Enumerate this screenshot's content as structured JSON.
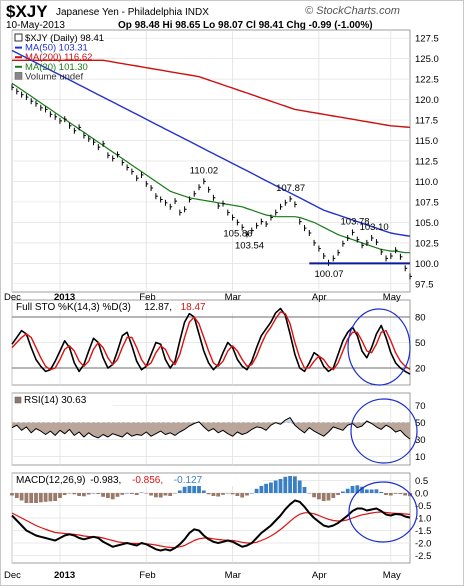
{
  "header": {
    "symbol": "$XJY",
    "name": "Japanese Yen - Philadelphia INDX",
    "date": "10-May-2013",
    "ohlc": "Op 98.48 Hi 98.65 Lo 98.07 Cl 98.41 Chg -0.99 (-1.00%)",
    "brand": "© StockCharts.com"
  },
  "colors": {
    "price": "#000000",
    "ma50": "#2233cc",
    "ma200": "#cc1111",
    "ma20": "#1a7a1a",
    "stok": "#000000",
    "stod": "#dd1111",
    "macd": "#000000",
    "signal": "#dd1111",
    "hist_pos": "#3a7fc4",
    "hist_neg": "#9a7a6a",
    "circle": "#1a2dd0",
    "support": "#0a1a9a"
  },
  "chart_data": [
    {
      "type": "line",
      "panel": "price",
      "legend": [
        {
          "key": "price",
          "text": "$XJY (Daily) 98.41"
        },
        {
          "key": "ma50",
          "text": "MA(50) 103.31"
        },
        {
          "key": "ma200",
          "text": "MA(200) 116.62"
        },
        {
          "key": "ma20",
          "text": "MA(20) 101.30"
        },
        {
          "key": "volume",
          "text": "Volume undef"
        }
      ],
      "x_labels": [
        "Dec",
        "2013",
        "Feb",
        "Mar",
        "Apr",
        "May"
      ],
      "y_ticks": [
        "127.5",
        "125.0",
        "122.5",
        "120.0",
        "117.5",
        "115.0",
        "112.5",
        "110.0",
        "107.5",
        "105.0",
        "102.5",
        "100.0",
        "97.5"
      ],
      "ylim": [
        96.5,
        128.5
      ],
      "annotations": [
        "110.02",
        "105.86",
        "103.54",
        "107.87",
        "103.78",
        "103.10",
        "100.07"
      ],
      "support_level": 100.0,
      "price": [
        121.5,
        121.0,
        120.6,
        120.3,
        119.8,
        119.5,
        119.0,
        118.8,
        118.2,
        117.9,
        117.4,
        117.6,
        116.8,
        116.2,
        116.6,
        115.6,
        115.2,
        114.8,
        114.2,
        114.6,
        113.2,
        112.8,
        113.3,
        112.3,
        111.7,
        111.2,
        110.4,
        110.8,
        109.7,
        109.2,
        108.2,
        107.8,
        107.4,
        106.9,
        107.6,
        106.2,
        106.6,
        107.8,
        108.5,
        109.3,
        110.02,
        109.0,
        108.0,
        107.0,
        107.3,
        106.2,
        105.6,
        105.0,
        104.4,
        103.54,
        104.0,
        104.6,
        105.1,
        104.8,
        105.6,
        106.2,
        106.9,
        107.4,
        107.87,
        107.2,
        105.1,
        104.3,
        103.7,
        102.5,
        101.8,
        100.9,
        100.07,
        100.6,
        101.3,
        102.4,
        103.1,
        103.78,
        102.9,
        102.2,
        102.5,
        103.1,
        102.6,
        101.4,
        100.6,
        100.9,
        101.6,
        100.8,
        99.4,
        98.41
      ],
      "ma20": [
        122.0,
        121.6,
        121.2,
        120.8,
        120.4,
        120.0,
        119.6,
        119.2,
        118.8,
        118.4,
        118.0,
        117.6,
        117.2,
        116.8,
        116.4,
        116.0,
        115.6,
        115.2,
        114.8,
        114.4,
        114.0,
        113.6,
        113.2,
        112.8,
        112.4,
        112.0,
        111.6,
        111.2,
        110.8,
        110.4,
        110.0,
        109.6,
        109.2,
        108.8,
        108.6,
        108.4,
        108.2,
        108.0,
        107.9,
        107.8,
        107.7,
        107.6,
        107.5,
        107.4,
        107.3,
        107.2,
        107.1,
        107.0,
        106.9,
        106.7,
        106.5,
        106.3,
        106.1,
        105.9,
        105.8,
        105.7,
        105.7,
        105.7,
        105.7,
        105.7,
        105.6,
        105.4,
        105.2,
        105.0,
        104.7,
        104.4,
        104.1,
        103.8,
        103.5,
        103.3,
        103.1,
        102.9,
        102.7,
        102.5,
        102.3,
        102.1,
        101.9,
        101.7,
        101.6,
        101.5,
        101.5,
        101.4,
        101.3,
        101.3
      ],
      "ma50": [
        126.0,
        125.7,
        125.4,
        125.1,
        124.8,
        124.5,
        124.2,
        123.9,
        123.6,
        123.3,
        123.0,
        122.7,
        122.4,
        122.1,
        121.8,
        121.5,
        121.2,
        120.9,
        120.6,
        120.3,
        120.0,
        119.7,
        119.4,
        119.1,
        118.8,
        118.5,
        118.2,
        117.9,
        117.6,
        117.3,
        117.0,
        116.7,
        116.4,
        116.1,
        115.8,
        115.5,
        115.2,
        114.9,
        114.6,
        114.3,
        114.0,
        113.7,
        113.4,
        113.1,
        112.8,
        112.5,
        112.2,
        111.9,
        111.6,
        111.3,
        111.0,
        110.7,
        110.4,
        110.1,
        109.8,
        109.5,
        109.2,
        108.9,
        108.6,
        108.3,
        108.0,
        107.7,
        107.4,
        107.1,
        106.8,
        106.5,
        106.3,
        106.1,
        105.9,
        105.7,
        105.5,
        105.3,
        105.1,
        104.9,
        104.7,
        104.5,
        104.3,
        104.1,
        103.9,
        103.7,
        103.6,
        103.5,
        103.4,
        103.31
      ],
      "ma200": [
        124.8,
        124.8,
        124.8,
        124.8,
        124.8,
        124.8,
        124.8,
        124.8,
        124.8,
        124.8,
        124.8,
        124.8,
        124.8,
        124.8,
        124.8,
        124.8,
        124.8,
        124.8,
        124.8,
        124.8,
        124.7,
        124.6,
        124.5,
        124.4,
        124.3,
        124.2,
        124.1,
        124.0,
        123.9,
        123.8,
        123.7,
        123.6,
        123.5,
        123.4,
        123.3,
        123.2,
        123.1,
        123.0,
        122.9,
        122.8,
        122.6,
        122.4,
        122.2,
        122.0,
        121.8,
        121.6,
        121.4,
        121.2,
        121.0,
        120.8,
        120.6,
        120.4,
        120.2,
        120.0,
        119.8,
        119.6,
        119.4,
        119.2,
        119.0,
        118.8,
        118.7,
        118.6,
        118.5,
        118.4,
        118.3,
        118.2,
        118.1,
        118.0,
        117.9,
        117.8,
        117.7,
        117.6,
        117.5,
        117.4,
        117.3,
        117.2,
        117.1,
        117.0,
        116.9,
        116.8,
        116.75,
        116.7,
        116.65,
        116.62
      ]
    },
    {
      "type": "line",
      "panel": "stochastic",
      "legend": [
        {
          "key": "label",
          "text": "Full STO %K(14,3) %D(3)"
        },
        {
          "key": "stok",
          "text": "12.87,"
        },
        {
          "key": "stod",
          "text": "18.47"
        }
      ],
      "y_ticks": [
        "80",
        "50",
        "20"
      ],
      "ylim": [
        0,
        100
      ],
      "k": [
        48,
        56,
        64,
        60,
        44,
        30,
        22,
        16,
        18,
        28,
        40,
        52,
        44,
        26,
        16,
        24,
        40,
        55,
        50,
        32,
        20,
        24,
        40,
        58,
        62,
        46,
        28,
        18,
        22,
        36,
        50,
        48,
        30,
        20,
        28,
        52,
        74,
        84,
        80,
        60,
        40,
        26,
        18,
        24,
        38,
        50,
        44,
        30,
        22,
        18,
        28,
        44,
        58,
        66,
        74,
        85,
        90,
        82,
        60,
        36,
        20,
        16,
        26,
        38,
        34,
        22,
        16,
        20,
        36,
        52,
        62,
        68,
        58,
        40,
        32,
        44,
        60,
        70,
        56,
        38,
        26,
        20,
        16,
        12.87
      ],
      "d": [
        44,
        50,
        56,
        60,
        56,
        44,
        32,
        22,
        18,
        20,
        30,
        42,
        46,
        40,
        28,
        22,
        28,
        42,
        50,
        44,
        32,
        24,
        30,
        44,
        56,
        56,
        44,
        30,
        22,
        26,
        38,
        46,
        42,
        30,
        24,
        36,
        56,
        74,
        80,
        72,
        56,
        40,
        26,
        22,
        28,
        40,
        46,
        40,
        30,
        22,
        24,
        34,
        48,
        60,
        68,
        78,
        86,
        84,
        72,
        50,
        32,
        20,
        20,
        28,
        34,
        30,
        22,
        18,
        26,
        40,
        54,
        62,
        62,
        52,
        40,
        38,
        48,
        62,
        64,
        52,
        38,
        28,
        22,
        18.47
      ]
    },
    {
      "type": "line",
      "panel": "rsi",
      "legend": [
        {
          "key": "label",
          "text": "RSI(14) 30.63"
        }
      ],
      "y_ticks": [
        "70",
        "50",
        "30",
        "10"
      ],
      "ylim": [
        0,
        85
      ],
      "overbought": 70,
      "oversold": 30,
      "rsi": [
        44,
        47,
        41,
        45,
        38,
        43,
        40,
        36,
        40,
        35,
        41,
        37,
        42,
        35,
        39,
        33,
        38,
        34,
        32,
        36,
        33,
        37,
        35,
        33,
        38,
        34,
        36,
        35,
        39,
        34,
        37,
        40,
        36,
        38,
        35,
        39,
        42,
        46,
        49,
        51,
        45,
        40,
        43,
        38,
        41,
        37,
        34,
        39,
        36,
        38,
        42,
        45,
        44,
        41,
        47,
        50,
        48,
        53,
        56,
        47,
        42,
        38,
        44,
        40,
        37,
        34,
        39,
        45,
        43,
        41,
        47,
        49,
        44,
        46,
        52,
        49,
        45,
        42,
        47,
        44,
        39,
        41,
        35,
        30.63
      ]
    },
    {
      "type": "line",
      "panel": "macd",
      "legend": [
        {
          "key": "label",
          "text": "MACD(12,26,9)"
        },
        {
          "key": "macd",
          "text": "-0.983,"
        },
        {
          "key": "signal",
          "text": "-0.856,"
        },
        {
          "key": "hist",
          "text": "-0.127"
        }
      ],
      "y_ticks": [
        "0.5",
        "0.0",
        "-0.5",
        "-1.0",
        "-1.5",
        "-2.0",
        "-2.5"
      ],
      "ylim": [
        -2.8,
        0.8
      ],
      "macd": [
        -0.9,
        -1.1,
        -1.3,
        -1.5,
        -1.6,
        -1.7,
        -1.75,
        -1.8,
        -1.85,
        -1.9,
        -1.8,
        -1.7,
        -1.65,
        -1.7,
        -1.8,
        -1.85,
        -1.8,
        -1.75,
        -1.8,
        -1.95,
        -2.05,
        -2.15,
        -2.1,
        -2.05,
        -2.0,
        -2.05,
        -2.1,
        -2.0,
        -2.05,
        -2.15,
        -2.25,
        -2.3,
        -2.25,
        -2.3,
        -2.2,
        -2.05,
        -1.85,
        -1.6,
        -1.45,
        -1.5,
        -1.7,
        -1.85,
        -1.95,
        -2.0,
        -1.95,
        -1.9,
        -1.95,
        -2.05,
        -2.15,
        -2.1,
        -2.0,
        -1.8,
        -1.6,
        -1.45,
        -1.3,
        -1.1,
        -0.9,
        -0.65,
        -0.45,
        -0.3,
        -0.35,
        -0.55,
        -0.8,
        -1.0,
        -1.15,
        -1.3,
        -1.35,
        -1.3,
        -1.2,
        -1.05,
        -0.9,
        -0.72,
        -0.62,
        -0.62,
        -0.7,
        -0.66,
        -0.62,
        -0.72,
        -0.86,
        -0.9,
        -0.84,
        -0.86,
        -0.94,
        -0.983
      ],
      "signal": [
        -0.8,
        -0.9,
        -1.0,
        -1.1,
        -1.2,
        -1.3,
        -1.38,
        -1.45,
        -1.52,
        -1.58,
        -1.6,
        -1.62,
        -1.63,
        -1.65,
        -1.68,
        -1.72,
        -1.74,
        -1.75,
        -1.76,
        -1.8,
        -1.85,
        -1.9,
        -1.95,
        -1.98,
        -2.0,
        -2.01,
        -2.02,
        -2.02,
        -2.03,
        -2.05,
        -2.08,
        -2.12,
        -2.15,
        -2.18,
        -2.18,
        -2.15,
        -2.1,
        -2.0,
        -1.9,
        -1.83,
        -1.8,
        -1.8,
        -1.83,
        -1.86,
        -1.88,
        -1.89,
        -1.9,
        -1.93,
        -1.97,
        -2.0,
        -2.0,
        -1.97,
        -1.9,
        -1.82,
        -1.72,
        -1.6,
        -1.46,
        -1.3,
        -1.13,
        -0.97,
        -0.85,
        -0.79,
        -0.79,
        -0.83,
        -0.9,
        -0.98,
        -1.05,
        -1.1,
        -1.12,
        -1.11,
        -1.07,
        -1.0,
        -0.93,
        -0.87,
        -0.84,
        -0.8,
        -0.77,
        -0.76,
        -0.78,
        -0.8,
        -0.81,
        -0.82,
        -0.84,
        -0.856
      ],
      "hist": [
        -0.1,
        -0.2,
        -0.3,
        -0.4,
        -0.4,
        -0.4,
        -0.37,
        -0.35,
        -0.33,
        -0.32,
        -0.2,
        -0.08,
        -0.02,
        -0.05,
        -0.12,
        -0.13,
        -0.06,
        0.0,
        -0.04,
        -0.15,
        -0.2,
        -0.25,
        -0.15,
        -0.07,
        0.0,
        -0.04,
        -0.08,
        0.02,
        -0.02,
        -0.1,
        -0.17,
        -0.18,
        -0.1,
        -0.12,
        -0.02,
        0.1,
        0.25,
        0.4,
        0.45,
        0.33,
        0.1,
        -0.05,
        -0.12,
        -0.14,
        -0.07,
        -0.01,
        -0.05,
        -0.12,
        -0.18,
        -0.1,
        0.0,
        0.17,
        0.3,
        0.37,
        0.42,
        0.5,
        0.56,
        0.65,
        0.68,
        0.67,
        0.5,
        0.24,
        -0.01,
        -0.17,
        -0.25,
        -0.32,
        -0.3,
        -0.2,
        -0.08,
        0.06,
        0.17,
        0.28,
        0.31,
        0.25,
        0.14,
        0.14,
        0.15,
        0.04,
        -0.08,
        -0.1,
        -0.03,
        -0.04,
        -0.1,
        -0.127
      ]
    }
  ]
}
